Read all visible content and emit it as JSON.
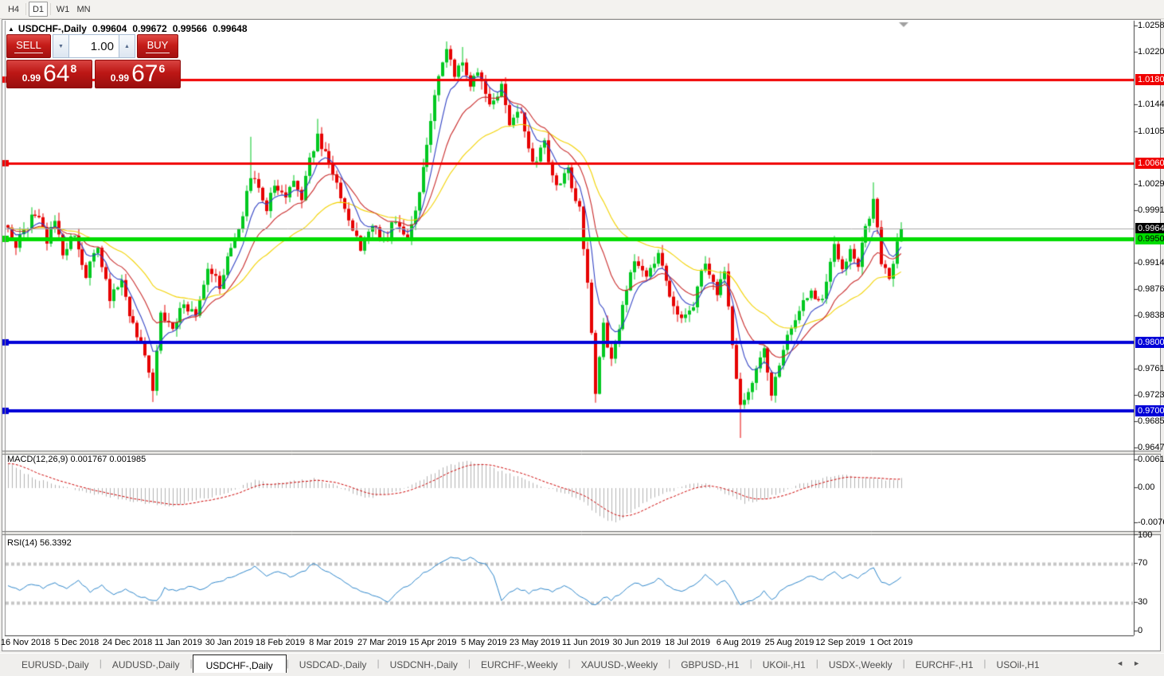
{
  "toolbar": {
    "timeframes": [
      {
        "label": "H4",
        "active": false
      },
      {
        "label": "D1",
        "active": true
      },
      {
        "label": "W1",
        "active": false
      },
      {
        "label": "MN",
        "active": false
      }
    ]
  },
  "chart_window": {
    "title": {
      "collapse_icon": "▲",
      "symbol": "USDCHF-,Daily",
      "open": "0.99604",
      "high": "0.99672",
      "low": "0.99566",
      "close": "0.99648"
    },
    "shift_icon": "▼",
    "trade_panel": {
      "sell_label": "SELL",
      "buy_label": "BUY",
      "volume": "1.00",
      "spin_down_icon": "▼",
      "spin_up_icon": "▲",
      "sell_price": {
        "prefix": "0.99",
        "big": "64",
        "sup": "8"
      },
      "buy_price": {
        "prefix": "0.99",
        "big": "67",
        "sup": "6"
      }
    }
  },
  "chart_data": [
    {
      "type": "candlestick",
      "symbol": "USDCHF-,Daily",
      "timeframe": "Daily",
      "bars": 229,
      "up_color": "#00C820",
      "down_color": "#E60000",
      "y_axis": {
        "min": 0.9647,
        "max": 1.0258,
        "ticks": [
          "1.02580",
          "1.02200",
          "1.01440",
          "1.01050",
          "1.00290",
          "0.99910",
          "0.99140",
          "0.98760",
          "0.98380",
          "0.97610",
          "0.97230",
          "0.96850",
          "0.96470"
        ]
      },
      "x_labels": [
        "16 Nov 2018",
        "5 Dec 2018",
        "24 Dec 2018",
        "11 Jan 2019",
        "30 Jan 2019",
        "18 Feb 2019",
        "8 Mar 2019",
        "27 Mar 2019",
        "15 Apr 2019",
        "5 May 2019",
        "23 May 2019",
        "11 Jun 2019",
        "30 Jun 2019",
        "18 Jul 2019",
        "6 Aug 2019",
        "25 Aug 2019",
        "12 Sep 2019",
        "1 Oct 2019"
      ],
      "x_label_first_bar": 4.5,
      "x_label_step_bars": 13,
      "hlines": [
        {
          "price": 1.01804,
          "label": "1.01804",
          "color": "#F00000",
          "width": 3,
          "text_color": "#ffffff"
        },
        {
          "price": 1.00602,
          "label": "1.00602",
          "color": "#F00000",
          "width": 3,
          "text_color": "#ffffff"
        },
        {
          "price": 0.99648,
          "label": "0.99648",
          "color": "#A8A8A8",
          "width": 1,
          "text_color": "#ffffff",
          "tag_color": "#000000",
          "is_current": true
        },
        {
          "price": 0.99501,
          "label": "0.99501",
          "color": "#00DC00",
          "width": 5,
          "text_color": "#000000"
        },
        {
          "price": 0.98005,
          "label": "0.98005",
          "color": "#0000D8",
          "width": 4,
          "text_color": "#ffffff"
        },
        {
          "price": 0.97007,
          "label": "0.97007",
          "color": "#0000D8",
          "width": 4,
          "text_color": "#ffffff"
        }
      ],
      "moving_averages": [
        {
          "period": 7,
          "color": "#3142C4"
        },
        {
          "period": 16,
          "color": "#C82828"
        },
        {
          "period": 36,
          "color": "#F2D200"
        }
      ],
      "current_price": 0.99648,
      "close_anchors": [
        [
          0,
          0.997
        ],
        [
          2,
          0.9938
        ],
        [
          4,
          0.9962
        ],
        [
          7,
          0.9988
        ],
        [
          10,
          0.995
        ],
        [
          12,
          0.9975
        ],
        [
          14,
          0.9932
        ],
        [
          17,
          0.9958
        ],
        [
          20,
          0.9896
        ],
        [
          23,
          0.994
        ],
        [
          26,
          0.9864
        ],
        [
          29,
          0.989
        ],
        [
          32,
          0.9822
        ],
        [
          35,
          0.9784
        ],
        [
          37,
          0.9732
        ],
        [
          39,
          0.9842
        ],
        [
          42,
          0.9814
        ],
        [
          45,
          0.9858
        ],
        [
          48,
          0.9838
        ],
        [
          51,
          0.9902
        ],
        [
          54,
          0.9884
        ],
        [
          57,
          0.9936
        ],
        [
          60,
          0.9986
        ],
        [
          62,
          1.004
        ],
        [
          64,
          1.0022
        ],
        [
          66,
          0.9996
        ],
        [
          68,
          1.003
        ],
        [
          71,
          1.0006
        ],
        [
          73,
          1.0034
        ],
        [
          75,
          1.001
        ],
        [
          77,
          1.0068
        ],
        [
          79,
          1.0096
        ],
        [
          81,
          1.0072
        ],
        [
          84,
          1.0028
        ],
        [
          87,
          0.9982
        ],
        [
          90,
          0.9934
        ],
        [
          93,
          0.9972
        ],
        [
          96,
          0.9946
        ],
        [
          99,
          0.998
        ],
        [
          102,
          0.9954
        ],
        [
          104,
          0.9992
        ],
        [
          106,
          1.0052
        ],
        [
          108,
          1.0124
        ],
        [
          110,
          1.0188
        ],
        [
          112,
          1.0222
        ],
        [
          114,
          1.019
        ],
        [
          116,
          1.0212
        ],
        [
          118,
          1.0166
        ],
        [
          120,
          1.0196
        ],
        [
          123,
          1.0144
        ],
        [
          126,
          1.0168
        ],
        [
          128,
          1.0114
        ],
        [
          131,
          1.0136
        ],
        [
          134,
          1.006
        ],
        [
          137,
          1.0086
        ],
        [
          140,
          1.0024
        ],
        [
          143,
          1.0048
        ],
        [
          146,
          0.999
        ],
        [
          148,
          0.9892
        ],
        [
          150,
          0.9732
        ],
        [
          152,
          0.9828
        ],
        [
          154,
          0.977
        ],
        [
          157,
          0.9852
        ],
        [
          160,
          0.9918
        ],
        [
          163,
          0.9892
        ],
        [
          166,
          0.9932
        ],
        [
          169,
          0.9868
        ],
        [
          172,
          0.9834
        ],
        [
          175,
          0.9858
        ],
        [
          178,
          0.9918
        ],
        [
          181,
          0.9874
        ],
        [
          183,
          0.9898
        ],
        [
          185,
          0.9796
        ],
        [
          187,
          0.9706
        ],
        [
          189,
          0.9724
        ],
        [
          191,
          0.9758
        ],
        [
          193,
          0.9792
        ],
        [
          195,
          0.9728
        ],
        [
          197,
          0.9772
        ],
        [
          199,
          0.9808
        ],
        [
          202,
          0.9848
        ],
        [
          205,
          0.9872
        ],
        [
          208,
          0.9858
        ],
        [
          211,
          0.994
        ],
        [
          213,
          0.9906
        ],
        [
          215,
          0.9938
        ],
        [
          217,
          0.9912
        ],
        [
          219,
          0.9966
        ],
        [
          221,
          1.0002
        ],
        [
          223,
          0.992
        ],
        [
          225,
          0.9894
        ],
        [
          227,
          0.9946
        ],
        [
          228,
          0.99648
        ]
      ],
      "extremes": [
        {
          "i": 37,
          "l": 0.9714
        },
        {
          "i": 62,
          "h": 1.0098
        },
        {
          "i": 79,
          "h": 1.0124
        },
        {
          "i": 112,
          "h": 1.0236
        },
        {
          "i": 116,
          "h": 1.0228
        },
        {
          "i": 150,
          "l": 0.9713
        },
        {
          "i": 187,
          "l": 0.9662
        },
        {
          "i": 221,
          "h": 1.0032
        }
      ]
    },
    {
      "type": "macd",
      "label": "MACD(12,26,9) 0.001767 0.001985",
      "macd_value": 0.001767,
      "signal_value": 0.001985,
      "axis_ticks": [
        "0.00613",
        "0.00",
        "-0.00761"
      ],
      "axis_values": [
        0.00613,
        0,
        -0.00761
      ],
      "bar_color": "#B2B2B2",
      "signal_color": "#CC0000",
      "signal_period": 9,
      "anchors": [
        [
          0,
          0.0055
        ],
        [
          3,
          0.0038
        ],
        [
          6,
          0.0024
        ],
        [
          10,
          0.0012
        ],
        [
          14,
          0.0003
        ],
        [
          18,
          -0.0006
        ],
        [
          24,
          -0.0016
        ],
        [
          30,
          -0.0026
        ],
        [
          36,
          -0.0034
        ],
        [
          42,
          -0.004
        ],
        [
          48,
          -0.0026
        ],
        [
          54,
          -0.0016
        ],
        [
          59,
          0.0002
        ],
        [
          63,
          0.0018
        ],
        [
          67,
          0.0008
        ],
        [
          72,
          0.0014
        ],
        [
          78,
          0.002
        ],
        [
          83,
          0.0008
        ],
        [
          88,
          -0.0012
        ],
        [
          92,
          -0.0022
        ],
        [
          96,
          -0.0014
        ],
        [
          100,
          -0.0004
        ],
        [
          104,
          0.001
        ],
        [
          108,
          0.003
        ],
        [
          112,
          0.0048
        ],
        [
          116,
          0.0058
        ],
        [
          120,
          0.0054
        ],
        [
          124,
          0.0042
        ],
        [
          128,
          0.003
        ],
        [
          132,
          0.0018
        ],
        [
          136,
          0.0006
        ],
        [
          140,
          -0.0006
        ],
        [
          144,
          -0.0018
        ],
        [
          147,
          -0.003
        ],
        [
          150,
          -0.0055
        ],
        [
          153,
          -0.007
        ],
        [
          155,
          -0.0076
        ],
        [
          158,
          -0.0058
        ],
        [
          161,
          -0.004
        ],
        [
          164,
          -0.0024
        ],
        [
          167,
          -0.0012
        ],
        [
          170,
          -0.0004
        ],
        [
          173,
          0.0006
        ],
        [
          176,
          0.0012
        ],
        [
          179,
          0.0006
        ],
        [
          182,
          -0.0006
        ],
        [
          185,
          -0.002
        ],
        [
          188,
          -0.0032
        ],
        [
          191,
          -0.0029
        ],
        [
          194,
          -0.002
        ],
        [
          197,
          -0.001
        ],
        [
          200,
          0.0001
        ],
        [
          203,
          0.0011
        ],
        [
          206,
          0.0018
        ],
        [
          209,
          0.0024
        ],
        [
          212,
          0.0028
        ],
        [
          215,
          0.0026
        ],
        [
          218,
          0.0022
        ],
        [
          221,
          0.002
        ],
        [
          224,
          0.0018
        ],
        [
          228,
          0.002
        ]
      ]
    },
    {
      "type": "rsi",
      "label": "RSI(14) 56.3392",
      "value": 56.3392,
      "period": 14,
      "axis_ticks": [
        "100",
        "70",
        "30",
        "0"
      ],
      "axis_values": [
        100,
        70,
        30,
        0
      ],
      "levels": [
        70,
        30
      ],
      "line_color": "#2E86CA",
      "anchors": [
        [
          0,
          48
        ],
        [
          3,
          43
        ],
        [
          6,
          50
        ],
        [
          9,
          45
        ],
        [
          12,
          51
        ],
        [
          15,
          44
        ],
        [
          18,
          52
        ],
        [
          21,
          41
        ],
        [
          24,
          48
        ],
        [
          27,
          38
        ],
        [
          30,
          44
        ],
        [
          33,
          37
        ],
        [
          36,
          33
        ],
        [
          38,
          31
        ],
        [
          40,
          45
        ],
        [
          43,
          41
        ],
        [
          46,
          47
        ],
        [
          49,
          43
        ],
        [
          52,
          49
        ],
        [
          55,
          53
        ],
        [
          58,
          58
        ],
        [
          61,
          64
        ],
        [
          63,
          67
        ],
        [
          66,
          58
        ],
        [
          69,
          62
        ],
        [
          72,
          57
        ],
        [
          75,
          61
        ],
        [
          78,
          70
        ],
        [
          81,
          63
        ],
        [
          84,
          56
        ],
        [
          88,
          46
        ],
        [
          91,
          41
        ],
        [
          94,
          36
        ],
        [
          97,
          31
        ],
        [
          100,
          42
        ],
        [
          103,
          50
        ],
        [
          106,
          60
        ],
        [
          109,
          68
        ],
        [
          111,
          73
        ],
        [
          113,
          77
        ],
        [
          116,
          74
        ],
        [
          118,
          76
        ],
        [
          120,
          72
        ],
        [
          122,
          70
        ],
        [
          124,
          58
        ],
        [
          126,
          32
        ],
        [
          128,
          40
        ],
        [
          130,
          45
        ],
        [
          133,
          40
        ],
        [
          136,
          46
        ],
        [
          139,
          42
        ],
        [
          142,
          47
        ],
        [
          145,
          40
        ],
        [
          147,
          34
        ],
        [
          150,
          27
        ],
        [
          152,
          36
        ],
        [
          154,
          33
        ],
        [
          157,
          41
        ],
        [
          160,
          50
        ],
        [
          163,
          47
        ],
        [
          166,
          55
        ],
        [
          169,
          46
        ],
        [
          172,
          41
        ],
        [
          175,
          48
        ],
        [
          178,
          58
        ],
        [
          181,
          49
        ],
        [
          183,
          54
        ],
        [
          185,
          42
        ],
        [
          187,
          28
        ],
        [
          189,
          31
        ],
        [
          191,
          34
        ],
        [
          193,
          42
        ],
        [
          195,
          32
        ],
        [
          197,
          41
        ],
        [
          199,
          46
        ],
        [
          202,
          52
        ],
        [
          205,
          58
        ],
        [
          208,
          53
        ],
        [
          211,
          63
        ],
        [
          213,
          56
        ],
        [
          215,
          60
        ],
        [
          217,
          55
        ],
        [
          219,
          62
        ],
        [
          221,
          65
        ],
        [
          223,
          52
        ],
        [
          225,
          49
        ],
        [
          227,
          54
        ],
        [
          228,
          56.34
        ]
      ]
    }
  ],
  "tabs": {
    "scroll_left_icon": "◄",
    "scroll_right_icon": "►",
    "items": [
      {
        "label": "EURUSD-,Daily",
        "active": false
      },
      {
        "label": "AUDUSD-,Daily",
        "active": false
      },
      {
        "label": "USDCHF-,Daily",
        "active": true
      },
      {
        "label": "USDCAD-,Daily",
        "active": false
      },
      {
        "label": "USDCNH-,Daily",
        "active": false
      },
      {
        "label": "EURCHF-,Weekly",
        "active": false
      },
      {
        "label": "XAUUSD-,Weekly",
        "active": false
      },
      {
        "label": "GBPUSD-,H1",
        "active": false
      },
      {
        "label": "UKOil-,H1",
        "active": false
      },
      {
        "label": "USDX-,Weekly",
        "active": false
      },
      {
        "label": "EURCHF-,H1",
        "active": false
      },
      {
        "label": "USOil-,H1",
        "active": false
      }
    ]
  }
}
